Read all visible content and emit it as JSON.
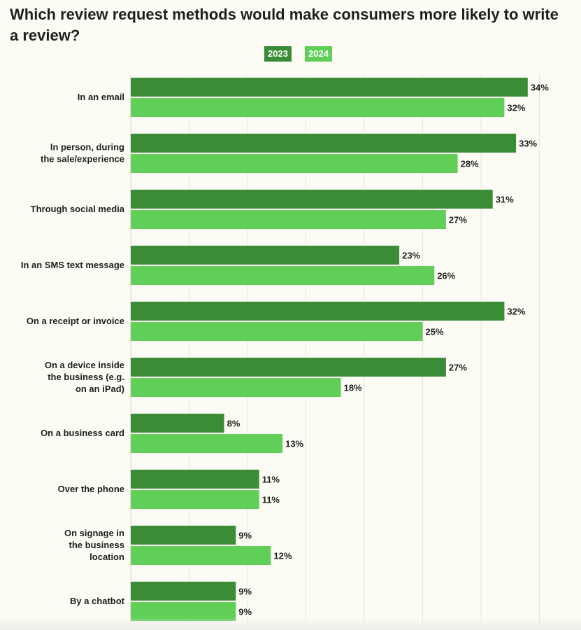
{
  "chart_data": {
    "type": "bar",
    "orientation": "horizontal",
    "title": "Which review request methods would make consumers more likely to write a review?",
    "legend": [
      "2023",
      "2024"
    ],
    "categories": [
      "In an email",
      "In person, during the sale/experience",
      "Through social media",
      "In an SMS text message",
      "On a receipt or invoice",
      "On a device inside the business (e.g. on an iPad)",
      "On a business card",
      "Over the phone",
      "On signage in the business location",
      "By a chatbot"
    ],
    "category_lines": [
      [
        "In an email"
      ],
      [
        "In person, during",
        "the sale/experience"
      ],
      [
        "Through social media"
      ],
      [
        "In an SMS text message"
      ],
      [
        "On a receipt or invoice"
      ],
      [
        "On a device inside",
        "the business (e.g.",
        "on an iPad)"
      ],
      [
        "On a business card"
      ],
      [
        "Over the phone"
      ],
      [
        "On signage in",
        "the business",
        "location"
      ],
      [
        "By a chatbot"
      ]
    ],
    "series": [
      {
        "name": "2023",
        "color": "#3b8c37",
        "values": [
          34,
          33,
          31,
          23,
          32,
          27,
          8,
          11,
          9,
          9
        ]
      },
      {
        "name": "2024",
        "color": "#5fcf57",
        "values": [
          32,
          28,
          27,
          26,
          25,
          18,
          13,
          11,
          12,
          9
        ]
      }
    ],
    "value_suffix": "%",
    "xlim": [
      0,
      35
    ],
    "grid": true,
    "legend_position": "top-center"
  }
}
